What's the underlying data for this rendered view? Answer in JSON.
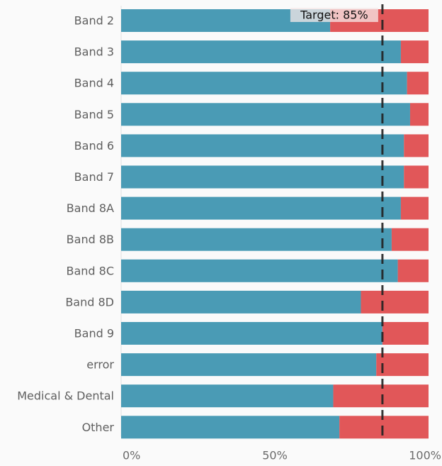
{
  "chart_data": {
    "type": "bar",
    "orientation": "horizontal",
    "stacked": true,
    "categories": [
      "Band 2",
      "Band 3",
      "Band 4",
      "Band 5",
      "Band 6",
      "Band 7",
      "Band 8A",
      "Band 8B",
      "Band 8C",
      "Band 8D",
      "Band 9",
      "error",
      "Medical & Dental",
      "Other"
    ],
    "series": [
      {
        "values": [
          68,
          91,
          93,
          94,
          92,
          92,
          91,
          88,
          90,
          78,
          85,
          83,
          69,
          71
        ],
        "color": "#4a9bb5"
      },
      {
        "values": [
          32,
          9,
          7,
          6,
          8,
          8,
          9,
          12,
          10,
          22,
          15,
          17,
          31,
          29
        ],
        "color": "#e15759"
      }
    ],
    "xlim": [
      0,
      100
    ],
    "x_ticks": [
      "0%",
      "50%",
      "100%"
    ],
    "grid": false,
    "reference_line": {
      "value": 85,
      "label": "Target: 85%",
      "color": "#222222",
      "label_background": "#f6e8e8"
    }
  }
}
